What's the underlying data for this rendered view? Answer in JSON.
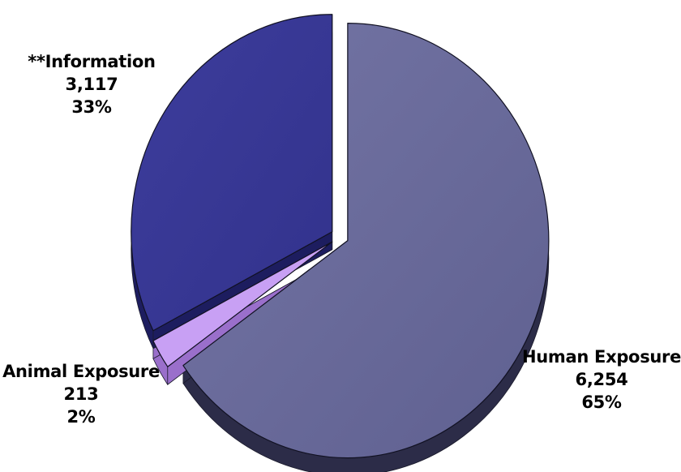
{
  "chart_data": {
    "type": "pie",
    "style": "3d-exploded",
    "slices": [
      {
        "label": "Human Exposure",
        "value": 6254,
        "value_text": "6,254",
        "percent_text": "65%",
        "color": "#6b6c9c"
      },
      {
        "label": "Animal Exposure",
        "value": 213,
        "value_text": "213",
        "percent_text": "2%",
        "color": "#c8a0f4"
      },
      {
        "label": "**Information",
        "value": 3117,
        "value_text": "3,117",
        "percent_text": "33%",
        "color": "#383896"
      }
    ]
  }
}
